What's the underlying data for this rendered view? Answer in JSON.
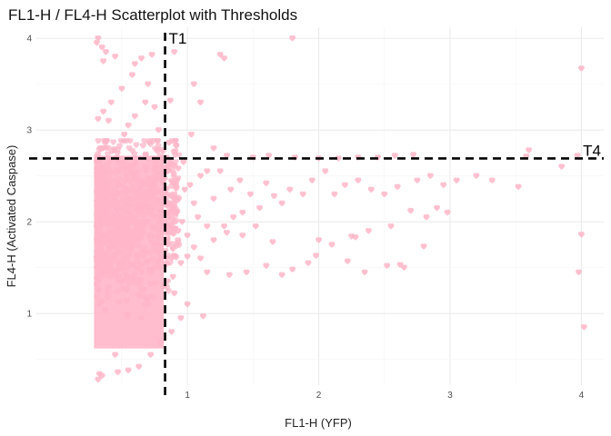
{
  "chart_data": {
    "type": "scatter",
    "title": "FL1-H / FL4-H Scatterplot with Thresholds",
    "xlabel": "FL1-H (YFP)",
    "ylabel": "FL4-H (Activated Caspase)",
    "xlim": [
      -0.15,
      4.17
    ],
    "ylim": [
      0.22,
      4.12
    ],
    "x_ticks": [
      1,
      2,
      3,
      4
    ],
    "y_ticks": [
      1,
      2,
      3,
      4
    ],
    "x_tick_labels": [
      "1",
      "2",
      "3",
      "4"
    ],
    "y_tick_labels": [
      "1",
      "2",
      "3",
      "4"
    ],
    "grid": true,
    "point_color": "#FFB6C8",
    "point_shape": "heart",
    "dense_cluster": {
      "x_range": [
        0.31,
        0.82
      ],
      "y_range": [
        0.3,
        2.88
      ],
      "note_values_peak_y": 2.0
    },
    "thresholds": [
      {
        "label": "T1",
        "axis": "x",
        "value": 0.83
      },
      {
        "label": "T4",
        "axis": "y",
        "value": 2.69
      }
    ],
    "points": [
      [
        0.32,
        4.0
      ],
      [
        0.31,
        3.95
      ],
      [
        0.35,
        3.9
      ],
      [
        0.38,
        3.85
      ],
      [
        0.36,
        3.75
      ],
      [
        0.45,
        3.8
      ],
      [
        0.6,
        3.72
      ],
      [
        0.65,
        3.78
      ],
      [
        0.58,
        3.6
      ],
      [
        0.73,
        3.82
      ],
      [
        0.7,
        3.5
      ],
      [
        0.9,
        3.85
      ],
      [
        1.25,
        3.82
      ],
      [
        1.28,
        3.78
      ],
      [
        1.8,
        4.0
      ],
      [
        4.0,
        3.67
      ],
      [
        0.5,
        3.45
      ],
      [
        0.42,
        3.3
      ],
      [
        0.36,
        3.2
      ],
      [
        0.4,
        3.1
      ],
      [
        0.32,
        3.12
      ],
      [
        0.55,
        3.05
      ],
      [
        0.6,
        3.15
      ],
      [
        0.52,
        2.95
      ],
      [
        0.75,
        3.25
      ],
      [
        0.68,
        3.3
      ],
      [
        0.78,
        3.0
      ],
      [
        1.05,
        3.5
      ],
      [
        1.1,
        3.3
      ],
      [
        0.87,
        3.32
      ],
      [
        1.03,
        2.95
      ],
      [
        1.2,
        2.8
      ],
      [
        1.3,
        2.72
      ],
      [
        1.5,
        2.7
      ],
      [
        1.62,
        2.72
      ],
      [
        1.82,
        2.7
      ],
      [
        2.0,
        2.69
      ],
      [
        2.15,
        2.69
      ],
      [
        2.3,
        2.7
      ],
      [
        2.45,
        2.7
      ],
      [
        2.58,
        2.72
      ],
      [
        2.72,
        2.73
      ],
      [
        3.6,
        2.78
      ],
      [
        3.58,
        2.71
      ],
      [
        3.97,
        2.72
      ],
      [
        3.32,
        2.45
      ],
      [
        3.05,
        2.45
      ],
      [
        2.95,
        2.4
      ],
      [
        2.85,
        2.5
      ],
      [
        2.75,
        2.45
      ],
      [
        2.6,
        2.38
      ],
      [
        2.5,
        2.3
      ],
      [
        2.4,
        2.35
      ],
      [
        2.3,
        2.45
      ],
      [
        2.2,
        2.4
      ],
      [
        2.12,
        2.3
      ],
      [
        2.05,
        2.55
      ],
      [
        1.95,
        2.45
      ],
      [
        1.88,
        2.3
      ],
      [
        1.78,
        2.35
      ],
      [
        1.72,
        2.2
      ],
      [
        1.66,
        2.28
      ],
      [
        1.55,
        2.15
      ],
      [
        1.48,
        2.3
      ],
      [
        1.4,
        2.45
      ],
      [
        1.33,
        2.35
      ],
      [
        1.2,
        2.25
      ],
      [
        1.1,
        2.5
      ],
      [
        1.05,
        2.2
      ],
      [
        0.98,
        2.35
      ],
      [
        0.92,
        2.45
      ],
      [
        3.52,
        2.38
      ],
      [
        3.85,
        2.6
      ],
      [
        4.0,
        1.86
      ],
      [
        3.98,
        1.45
      ],
      [
        4.02,
        0.85
      ],
      [
        3.2,
        2.5
      ],
      [
        2.98,
        2.1
      ],
      [
        2.9,
        2.15
      ],
      [
        2.82,
        2.05
      ],
      [
        2.7,
        2.12
      ],
      [
        2.55,
        1.95
      ],
      [
        2.38,
        1.9
      ],
      [
        2.25,
        1.84
      ],
      [
        2.28,
        1.83
      ],
      [
        2.1,
        1.75
      ],
      [
        2.0,
        1.8
      ],
      [
        1.92,
        1.55
      ],
      [
        1.8,
        1.48
      ],
      [
        1.72,
        1.42
      ],
      [
        1.6,
        1.52
      ],
      [
        1.45,
        1.45
      ],
      [
        1.32,
        1.42
      ],
      [
        2.22,
        1.57
      ],
      [
        2.52,
        1.52
      ],
      [
        2.35,
        1.45
      ],
      [
        2.62,
        1.53
      ],
      [
        2.65,
        1.5
      ],
      [
        2.8,
        1.73
      ],
      [
        1.98,
        1.63
      ],
      [
        1.65,
        1.78
      ],
      [
        1.52,
        1.95
      ],
      [
        1.42,
        1.85
      ],
      [
        1.3,
        1.88
      ],
      [
        1.2,
        1.8
      ],
      [
        1.15,
        1.95
      ],
      [
        1.05,
        1.72
      ],
      [
        1.0,
        1.62
      ],
      [
        0.95,
        1.55
      ],
      [
        1.15,
        1.45
      ],
      [
        1.0,
        1.1
      ],
      [
        0.95,
        0.95
      ],
      [
        1.12,
        0.97
      ],
      [
        0.88,
        0.8
      ],
      [
        0.8,
        0.68
      ],
      [
        0.72,
        0.55
      ],
      [
        0.63,
        0.42
      ],
      [
        0.55,
        0.38
      ],
      [
        0.47,
        0.36
      ],
      [
        0.35,
        0.32
      ],
      [
        0.32,
        0.28
      ],
      [
        0.33,
        0.34
      ],
      [
        0.45,
        0.55
      ],
      [
        0.65,
        0.95
      ],
      [
        0.7,
        1.1
      ],
      [
        0.85,
        1.35
      ],
      [
        0.9,
        1.22
      ],
      [
        0.85,
        2.6
      ],
      [
        0.88,
        2.1
      ],
      [
        0.93,
        1.9
      ],
      [
        0.85,
        1.75
      ],
      [
        0.88,
        1.6
      ],
      [
        0.9,
        2.3
      ],
      [
        0.96,
        2.0
      ],
      [
        1.0,
        1.85
      ],
      [
        1.08,
        2.05
      ],
      [
        0.93,
        2.58
      ],
      [
        1.15,
        2.55
      ],
      [
        1.02,
        2.4
      ],
      [
        0.86,
        2.2
      ],
      [
        0.89,
        1.4
      ],
      [
        0.86,
        2.86
      ],
      [
        0.84,
        2.7
      ],
      [
        0.97,
        2.65
      ],
      [
        1.6,
        2.42
      ],
      [
        1.25,
        2.55
      ],
      [
        1.35,
        2.05
      ],
      [
        1.42,
        2.1
      ],
      [
        1.28,
        1.95
      ],
      [
        1.1,
        1.6
      ]
    ]
  }
}
